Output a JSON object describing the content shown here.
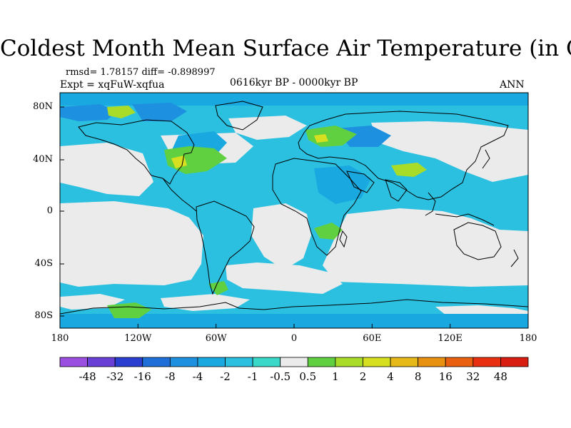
{
  "title": "Coldest Month Mean Surface Air Temperature (in C)",
  "stats_line": "rmsd= 1.78157  diff= -0.898997",
  "expt_line": "Expt = xqFuW-xqfua",
  "period_label": "0616kyr BP - 0000kyr BP",
  "season_label": "ANN",
  "y_ticks": [
    "80N",
    "40N",
    "0",
    "40S",
    "80S"
  ],
  "x_ticks": [
    "180",
    "120W",
    "60W",
    "0",
    "60E",
    "120E",
    "180"
  ],
  "colorbar": {
    "labels": [
      "-48",
      "-32",
      "-16",
      "-8",
      "-4",
      "-2",
      "-1",
      "-0.5",
      "0.5",
      "1",
      "2",
      "4",
      "8",
      "16",
      "32",
      "48"
    ],
    "colors": [
      "#9b4fe0",
      "#6a3fd6",
      "#2a3fd0",
      "#1e6fd8",
      "#1e90e0",
      "#1aa8e0",
      "#2cc0e0",
      "#3ad8c8",
      "#ebebeb",
      "#60d040",
      "#a8dc28",
      "#d6e020",
      "#e6b818",
      "#e89010",
      "#e86010",
      "#e83010",
      "#d81e10"
    ]
  },
  "legend_colors": {
    "neutral": "#ebebeb",
    "light_blue": "#2cc0e0",
    "mid_blue": "#1aa8e0",
    "dark_blue": "#1e90e0",
    "light_green": "#a8dc28",
    "green": "#60d040",
    "yellow": "#d6e020"
  }
}
